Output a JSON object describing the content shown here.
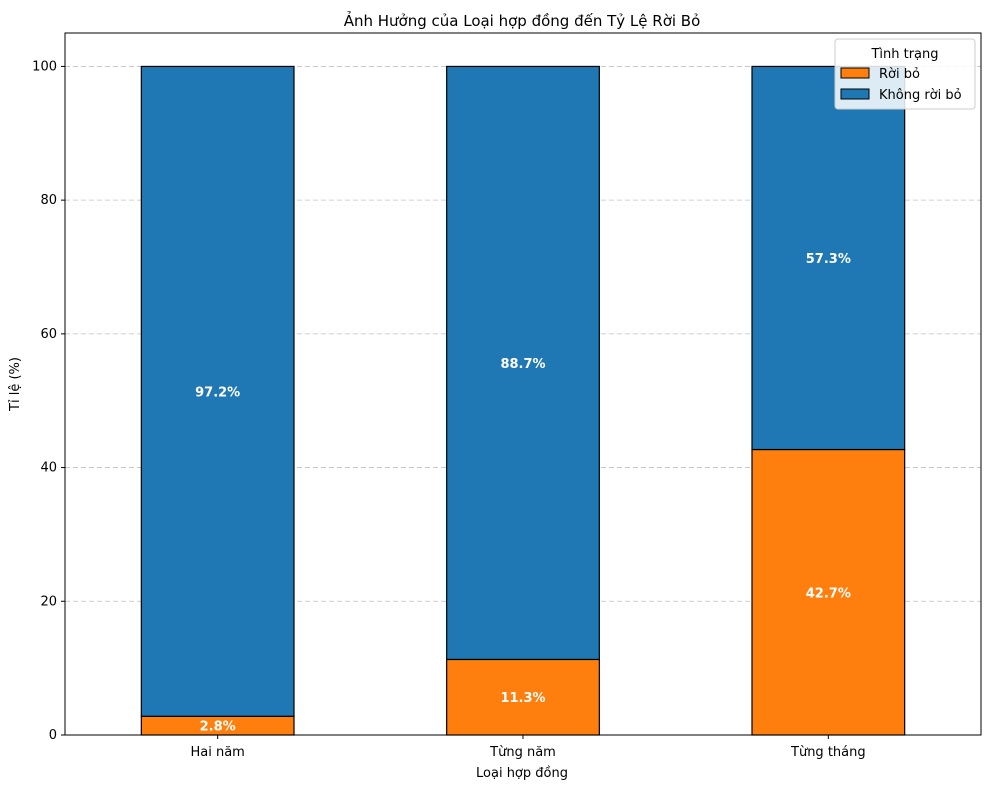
{
  "chart_data": {
    "type": "bar",
    "stacked": true,
    "title": "Ảnh Hưởng của Loại hợp đồng đến Tỷ Lệ Rời Bỏ",
    "xlabel": "Loại hợp đồng",
    "ylabel": "Tỉ lệ (%)",
    "categories": [
      "Hai năm",
      "Từng năm",
      "Từng tháng"
    ],
    "series": [
      {
        "name": "Rời bỏ",
        "values": [
          2.8,
          11.3,
          42.7
        ],
        "labels": [
          "2.8%",
          "11.3%",
          "42.7%"
        ],
        "color": "#ff7f0e"
      },
      {
        "name": "Không rời bỏ",
        "values": [
          97.2,
          88.7,
          57.3
        ],
        "labels": [
          "97.2%",
          "88.7%",
          "57.3%"
        ],
        "color": "#1f77b4"
      }
    ],
    "ylim": [
      0,
      105
    ],
    "yticks": [
      0,
      20,
      40,
      60,
      80,
      100
    ],
    "grid": "y-dashed",
    "legend": {
      "title": "Tình trạng",
      "position": "top-right"
    }
  }
}
